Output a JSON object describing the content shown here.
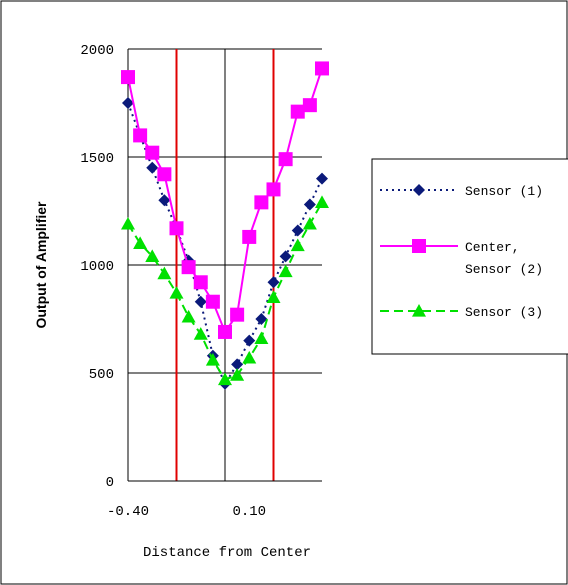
{
  "chart_data": {
    "type": "line",
    "title": "",
    "xlabel": "Distance from Center",
    "ylabel": "Output of Amplifier",
    "xlim": [
      -0.4,
      0.4
    ],
    "ylim": [
      0,
      2000
    ],
    "y_ticks": [
      "0",
      "500",
      "1000",
      "1500",
      "2000"
    ],
    "x_tick_labels": [
      "-0.40",
      "0.10"
    ],
    "grid": "horizontal major gridlines",
    "legend_position": "right",
    "x": [
      -0.4,
      -0.35,
      -0.3,
      -0.25,
      -0.2,
      -0.15,
      -0.1,
      -0.05,
      0.0,
      0.05,
      0.1,
      0.15,
      0.2,
      0.25,
      0.3,
      0.35,
      0.4
    ],
    "series": [
      {
        "name": "Sensor (1)",
        "color": "#0b1a7a",
        "marker": "diamond",
        "line": "dotted",
        "values": [
          1750,
          1600,
          1450,
          1300,
          1170,
          1020,
          830,
          580,
          450,
          540,
          650,
          750,
          920,
          1040,
          1160,
          1280,
          1400
        ]
      },
      {
        "name": "Center, Sensor (2)",
        "color": "#ff00ff",
        "marker": "square",
        "line": "solid",
        "values": [
          1870,
          1600,
          1520,
          1420,
          1170,
          990,
          920,
          830,
          690,
          770,
          1130,
          1290,
          1350,
          1490,
          1710,
          1740,
          1910
        ]
      },
      {
        "name": "Sensor (3)",
        "color": "#00e000",
        "marker": "triangle",
        "line": "dashed",
        "values": [
          1190,
          1100,
          1040,
          960,
          870,
          760,
          680,
          560,
          470,
          490,
          570,
          660,
          850,
          970,
          1090,
          1190,
          1290
        ]
      }
    ],
    "reference_lines": [
      {
        "x": -0.2,
        "color": "#e00000"
      },
      {
        "x": 0.2,
        "color": "#e00000"
      }
    ]
  },
  "legend": {
    "items": [
      {
        "label_lines": [
          "Sensor (1)"
        ],
        "series": 0
      },
      {
        "label_lines": [
          "Center,",
          "Sensor (2)"
        ],
        "series": 1
      },
      {
        "label_lines": [
          "Sensor (3)"
        ],
        "series": 2
      }
    ]
  }
}
